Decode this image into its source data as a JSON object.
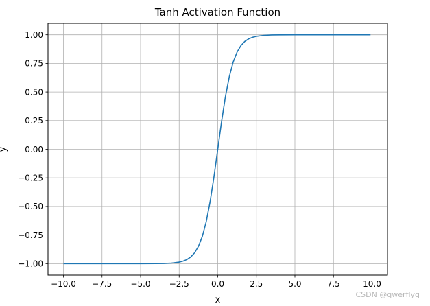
{
  "chart_data": {
    "type": "line",
    "title": "Tanh Activation Function",
    "xlabel": "x",
    "ylabel": "y",
    "xlim": [
      -11,
      11
    ],
    "ylim": [
      -1.1,
      1.1
    ],
    "grid": true,
    "x_ticks": [
      -10,
      -7.5,
      -5,
      -2.5,
      0,
      2.5,
      5,
      7.5,
      10
    ],
    "x_tick_labels": [
      "−10.0",
      "−7.5",
      "−5.0",
      "−2.5",
      "0.0",
      "2.5",
      "5.0",
      "7.5",
      "10.0"
    ],
    "y_ticks": [
      -1,
      -0.75,
      -0.5,
      -0.25,
      0,
      0.25,
      0.5,
      0.75,
      1
    ],
    "y_tick_labels": [
      "−1.00",
      "−0.75",
      "−0.50",
      "−0.25",
      "0.00",
      "0.25",
      "0.50",
      "0.75",
      "1.00"
    ],
    "series": [
      {
        "color": "#1f77b4",
        "x": [
          -10,
          -9,
          -8,
          -7,
          -6,
          -5,
          -4,
          -3.5,
          -3,
          -2.5,
          -2.25,
          -2,
          -1.75,
          -1.5,
          -1.25,
          -1,
          -0.75,
          -0.5,
          -0.25,
          0,
          0.25,
          0.5,
          0.75,
          1,
          1.25,
          1.5,
          1.75,
          2,
          2.25,
          2.5,
          3,
          3.5,
          4,
          5,
          6,
          7,
          8,
          9,
          9.9
        ],
        "y": [
          -1.0,
          -1.0,
          -1.0,
          -1.0,
          -1.0,
          -0.9999,
          -0.9993,
          -0.9982,
          -0.9951,
          -0.9866,
          -0.978,
          -0.964,
          -0.9414,
          -0.9051,
          -0.8483,
          -0.7616,
          -0.6351,
          -0.4621,
          -0.2449,
          0.0,
          0.2449,
          0.4621,
          0.6351,
          0.7616,
          0.8483,
          0.9051,
          0.9414,
          0.964,
          0.978,
          0.9866,
          0.9951,
          0.9982,
          0.9993,
          0.9999,
          1.0,
          1.0,
          1.0,
          1.0,
          1.0
        ]
      }
    ]
  },
  "watermark": "CSDN @qwerflyq"
}
